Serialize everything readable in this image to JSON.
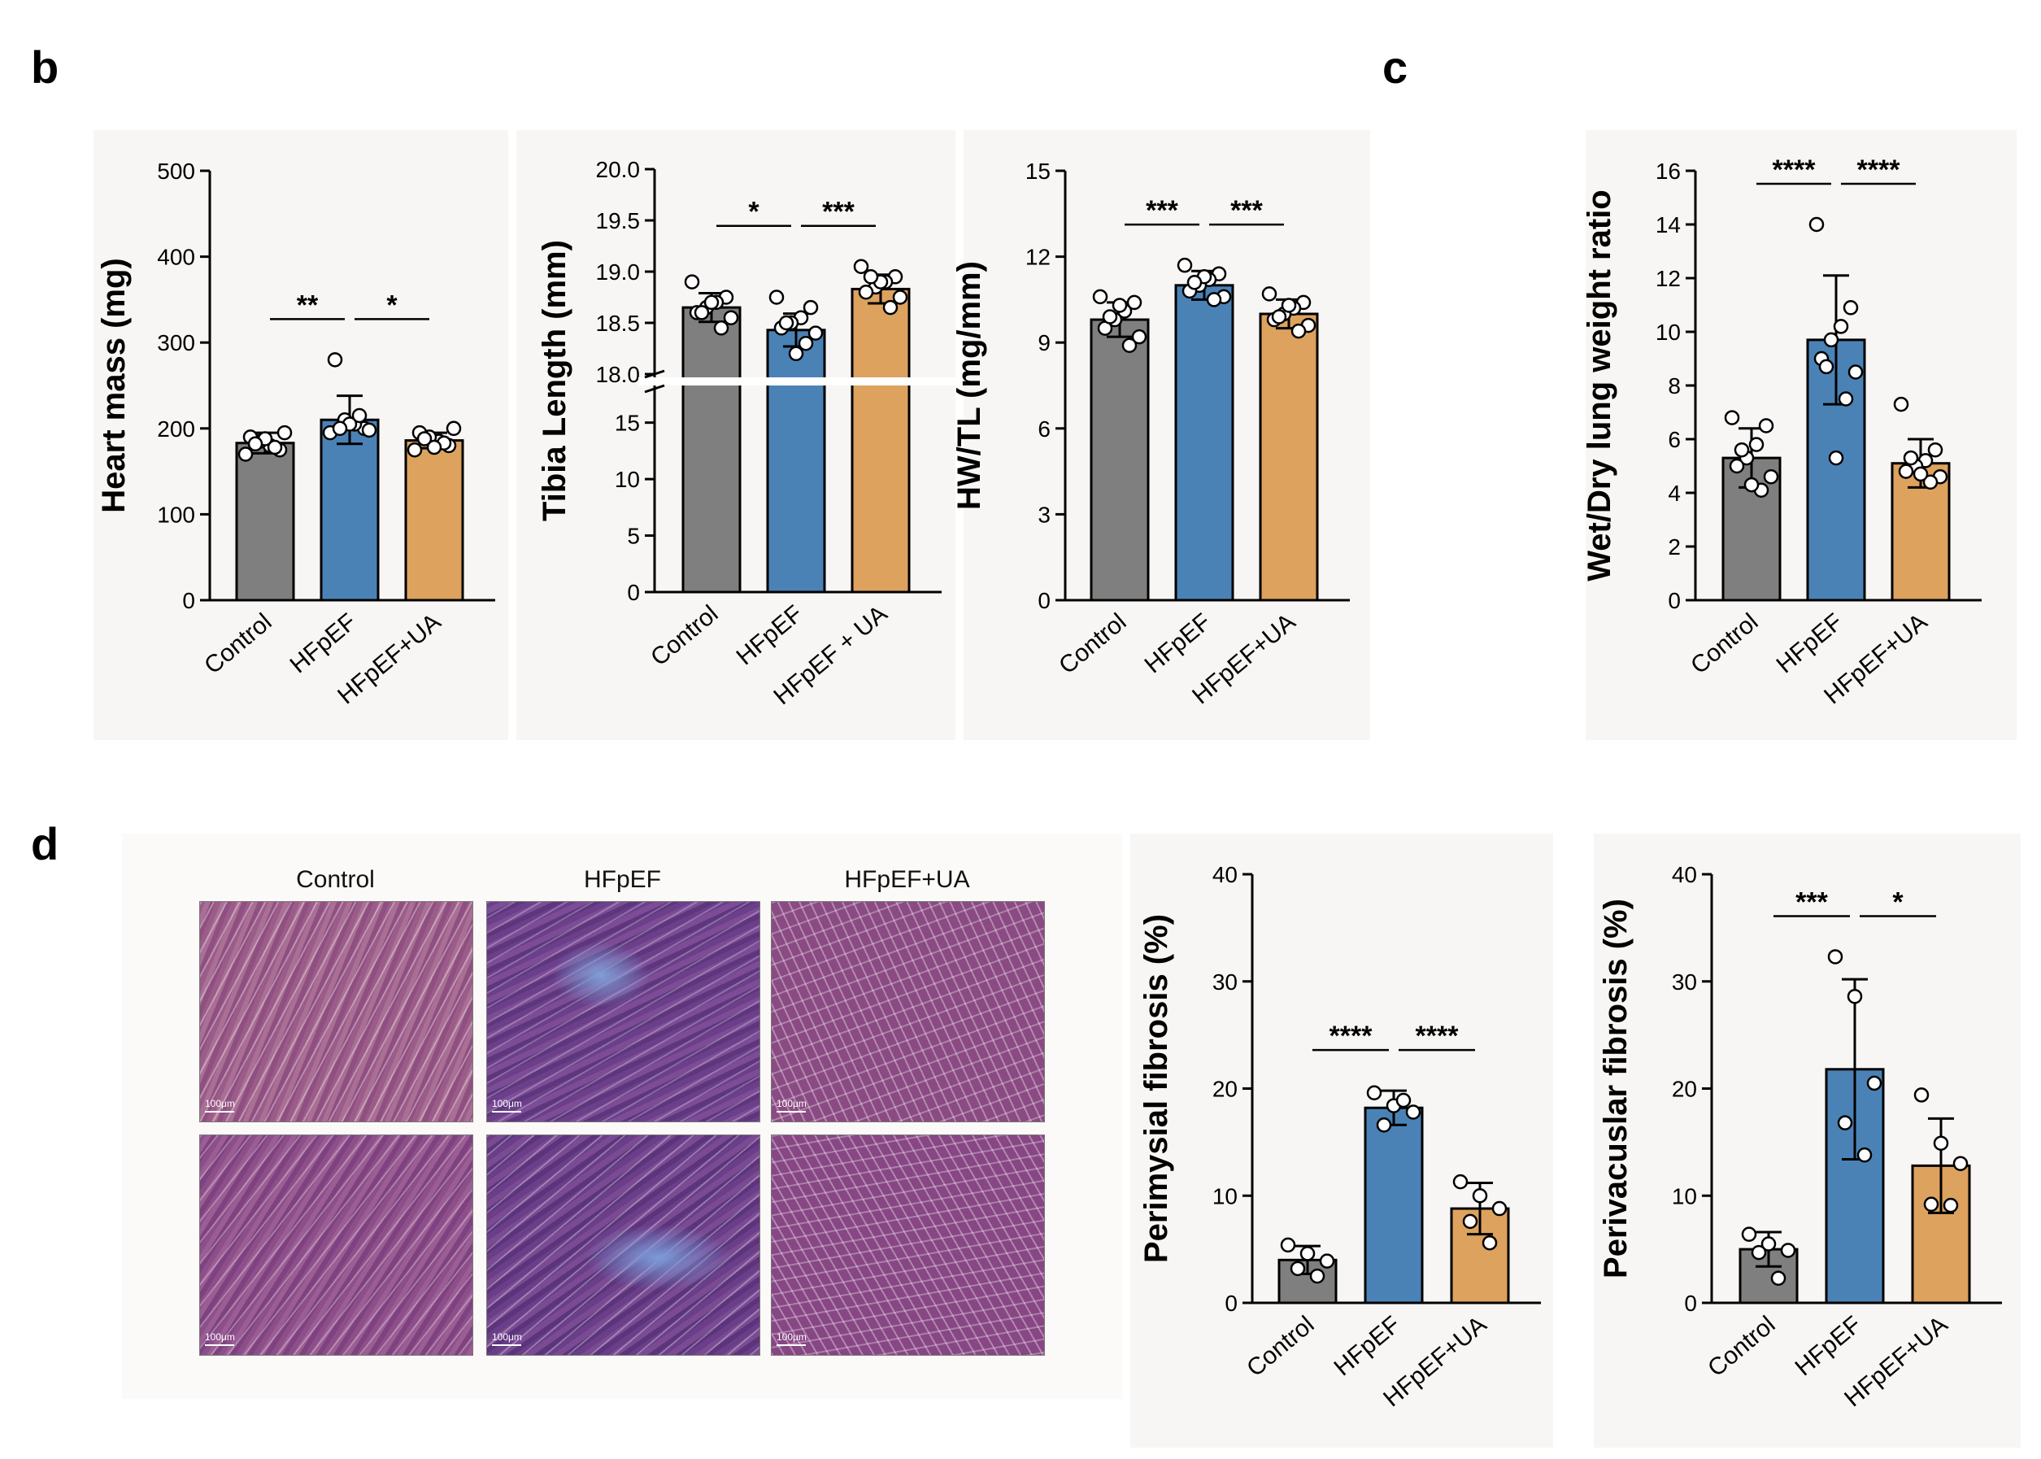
{
  "panels": {
    "b": "b",
    "c": "c",
    "d": "d"
  },
  "colors": {
    "control": "#7f7f7f",
    "hfpef": "#4b82b6",
    "ua": "#dda25e",
    "stroke": "#000000",
    "point_fill": "#ffffff"
  },
  "histology": {
    "columns": [
      "Control",
      "HFpEF",
      "HFpEF+UA"
    ],
    "scale_bar": "100μm"
  },
  "chart_data": [
    {
      "id": "heart",
      "type": "bar",
      "categories": [
        "Control",
        "HFpEF",
        "HFpEF+UA"
      ],
      "ylabel": "Heart mass  (mg)",
      "ylim": [
        0,
        500
      ],
      "yticks": [
        "0",
        "100",
        "200",
        "300",
        "400",
        "500"
      ],
      "values": [
        183,
        210,
        186
      ],
      "sd": [
        12,
        28,
        9
      ],
      "points": [
        [
          170,
          175,
          180,
          185,
          190,
          195,
          178,
          188,
          182
        ],
        [
          195,
          200,
          205,
          210,
          280,
          198,
          215,
          205,
          200
        ],
        [
          175,
          180,
          185,
          190,
          195,
          200,
          183,
          178,
          188
        ]
      ],
      "significance": [
        {
          "from": 0,
          "to": 1,
          "label": "**"
        },
        {
          "from": 1,
          "to": 2,
          "label": "*"
        }
      ]
    },
    {
      "id": "tibia",
      "type": "bar",
      "categories": [
        "Control",
        "HFpEF",
        "HFpEF + UA"
      ],
      "ylabel": "Tibia Length (mm)",
      "axis_break": {
        "lower": [
          0,
          18
        ],
        "upper": [
          18.0,
          20.0
        ]
      },
      "yticks_lower": [
        "0",
        "5",
        "10",
        "15"
      ],
      "yticks_upper": [
        "18.0",
        "18.5",
        "19.0",
        "19.5",
        "20.0"
      ],
      "values": [
        18.65,
        18.43,
        18.83
      ],
      "sd": [
        0.14,
        0.16,
        0.14
      ],
      "points": [
        [
          18.9,
          18.75,
          18.7,
          18.65,
          18.6,
          18.55,
          18.45,
          18.7,
          18.6
        ],
        [
          18.75,
          18.65,
          18.55,
          18.5,
          18.45,
          18.4,
          18.3,
          18.2,
          18.5
        ],
        [
          19.05,
          18.95,
          18.9,
          18.85,
          18.8,
          18.75,
          18.65,
          18.9,
          18.95
        ]
      ],
      "significance": [
        {
          "from": 0,
          "to": 1,
          "label": "*"
        },
        {
          "from": 1,
          "to": 2,
          "label": "***"
        }
      ]
    },
    {
      "id": "hwtl",
      "type": "bar",
      "categories": [
        "Control",
        "HFpEF",
        "HFpEF+UA"
      ],
      "ylabel": "HW/TL (mg/mm)",
      "ylim": [
        0,
        15
      ],
      "yticks": [
        "0",
        "3",
        "6",
        "9",
        "12",
        "15"
      ],
      "values": [
        9.8,
        11.0,
        10.0
      ],
      "sd": [
        0.6,
        0.5,
        0.5
      ],
      "points": [
        [
          10.6,
          10.4,
          10.1,
          9.8,
          9.5,
          9.2,
          8.9,
          10.3,
          9.9
        ],
        [
          11.7,
          11.4,
          11.2,
          11.0,
          10.8,
          10.6,
          10.5,
          11.3,
          11.1
        ],
        [
          10.7,
          10.4,
          10.2,
          10.0,
          9.8,
          9.6,
          9.4,
          10.3,
          9.9
        ]
      ],
      "significance": [
        {
          "from": 0,
          "to": 1,
          "label": "***"
        },
        {
          "from": 1,
          "to": 2,
          "label": "***"
        }
      ]
    },
    {
      "id": "lung",
      "type": "bar",
      "categories": [
        "Control",
        "HFpEF",
        "HFpEF+UA"
      ],
      "ylabel": "Wet/Dry lung weight ratio",
      "ylim": [
        0,
        16
      ],
      "yticks": [
        "0",
        "2",
        "4",
        "6",
        "8",
        "10",
        "12",
        "14",
        "16"
      ],
      "values": [
        5.3,
        9.7,
        5.1
      ],
      "sd": [
        1.1,
        2.4,
        0.9
      ],
      "points": [
        [
          6.8,
          6.5,
          5.8,
          5.3,
          5.0,
          4.6,
          4.1,
          4.3,
          5.6
        ],
        [
          14.0,
          10.9,
          10.2,
          9.7,
          9.0,
          8.5,
          7.5,
          5.3,
          8.7
        ],
        [
          7.3,
          5.6,
          5.2,
          5.0,
          4.8,
          4.6,
          4.4,
          4.7,
          5.3
        ]
      ],
      "significance": [
        {
          "from": 0,
          "to": 1,
          "label": "****"
        },
        {
          "from": 1,
          "to": 2,
          "label": "****"
        }
      ]
    },
    {
      "id": "perimysial",
      "type": "bar",
      "categories": [
        "Control",
        "HFpEF",
        "HFpEF+UA"
      ],
      "ylabel": "Perimysial fibrosis (%)",
      "ylim": [
        0,
        40
      ],
      "yticks": [
        "0",
        "10",
        "20",
        "30",
        "40"
      ],
      "values": [
        4.0,
        18.2,
        8.8
      ],
      "sd": [
        1.3,
        1.6,
        2.4
      ],
      "points": [
        [
          5.4,
          4.6,
          3.9,
          3.2,
          2.5
        ],
        [
          19.6,
          18.4,
          17.8,
          16.6,
          18.9
        ],
        [
          11.3,
          10.0,
          8.8,
          7.6,
          5.6
        ]
      ],
      "significance": [
        {
          "from": 0,
          "to": 1,
          "label": "****"
        },
        {
          "from": 1,
          "to": 2,
          "label": "****"
        }
      ]
    },
    {
      "id": "perivascular",
      "type": "bar",
      "categories": [
        "Control",
        "HFpEF",
        "HFpEF+UA"
      ],
      "ylabel": "Perivacuslar fibrosis  (%)",
      "ylim": [
        0,
        40
      ],
      "yticks": [
        "0",
        "10",
        "20",
        "30",
        "40"
      ],
      "values": [
        5.0,
        21.8,
        12.8
      ],
      "sd": [
        1.6,
        8.4,
        4.4
      ],
      "points": [
        [
          6.4,
          5.5,
          4.9,
          4.7,
          2.3
        ],
        [
          32.3,
          28.6,
          20.5,
          16.8,
          13.8
        ],
        [
          19.4,
          14.9,
          13.0,
          9.2,
          9.1
        ]
      ],
      "significance": [
        {
          "from": 0,
          "to": 1,
          "label": "***"
        },
        {
          "from": 1,
          "to": 2,
          "label": "*"
        }
      ]
    }
  ]
}
